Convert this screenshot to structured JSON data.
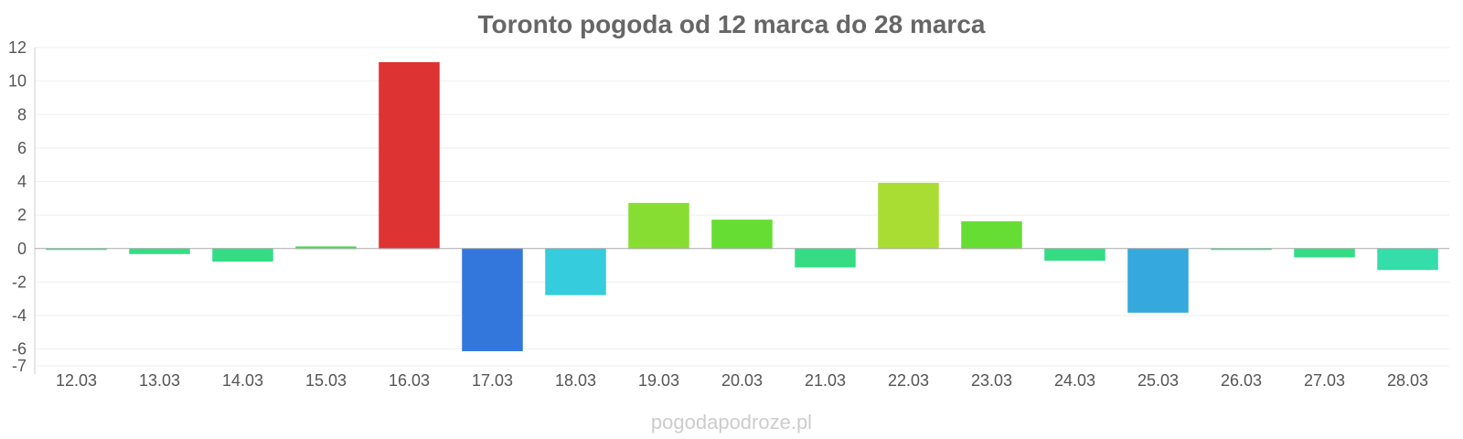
{
  "title": "Toronto pogoda od 12 marca do 28 marca",
  "watermark": "pogodapodroze.pl",
  "chart_data": {
    "type": "bar",
    "title": "Toronto pogoda od 12 marca do 28 marca",
    "xlabel": "",
    "ylabel": "",
    "ylim": [
      -7,
      12
    ],
    "yticks": [
      12,
      10,
      8,
      6,
      4,
      2,
      0,
      -2,
      -4,
      -6,
      -7
    ],
    "grid": true,
    "categories": [
      "12.03",
      "13.03",
      "14.03",
      "15.03",
      "16.03",
      "17.03",
      "18.03",
      "19.03",
      "20.03",
      "21.03",
      "22.03",
      "23.03",
      "24.03",
      "25.03",
      "26.03",
      "27.03",
      "28.03"
    ],
    "values": [
      0.0,
      -0.3,
      -0.75,
      0.1,
      11.1,
      -6.1,
      -2.75,
      2.7,
      1.7,
      -1.1,
      3.9,
      1.6,
      -0.7,
      -3.8,
      0.0,
      -0.5,
      -1.25
    ],
    "colors": [
      "#35dc84",
      "#35dc84",
      "#35dc84",
      "#44dd44",
      "#dd3333",
      "#3377dd",
      "#35ccdd",
      "#88dd33",
      "#66dd33",
      "#35dc84",
      "#aadd33",
      "#66dd33",
      "#35dc84",
      "#35a9dd",
      "#35dc84",
      "#35dc84",
      "#35ddaa"
    ]
  }
}
